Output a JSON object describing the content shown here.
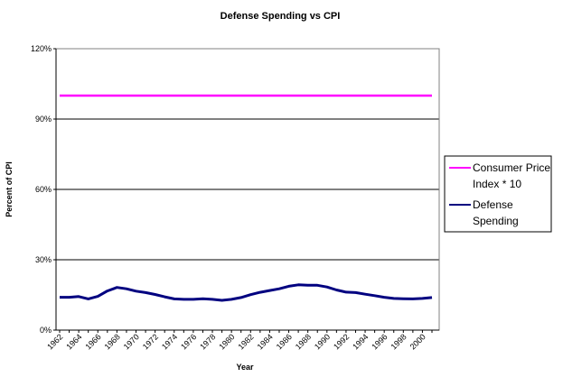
{
  "chart_data": {
    "type": "line",
    "title": "Defense Spending vs CPI",
    "xlabel": "Year",
    "ylabel": "Percent of CPI",
    "ylim": [
      0,
      120
    ],
    "yticks": [
      "0%",
      "30%",
      "60%",
      "90%",
      "120%"
    ],
    "ytick_values": [
      0,
      30,
      60,
      90,
      120
    ],
    "grid": true,
    "legend_position": "right",
    "x": [
      1962,
      1963,
      1964,
      1965,
      1966,
      1967,
      1968,
      1969,
      1970,
      1971,
      1972,
      1973,
      1974,
      1975,
      1976,
      1977,
      1978,
      1979,
      1980,
      1981,
      1982,
      1983,
      1984,
      1985,
      1986,
      1987,
      1988,
      1989,
      1990,
      1991,
      1992,
      1993,
      1994,
      1995,
      1996,
      1997,
      1998,
      1999,
      2000,
      2001
    ],
    "xtick_labels": [
      "1962",
      "1964",
      "1966",
      "1968",
      "1970",
      "1972",
      "1974",
      "1976",
      "1978",
      "1980",
      "1982",
      "1984",
      "1986",
      "1988",
      "1990",
      "1992",
      "1994",
      "1996",
      "1998",
      "2000"
    ],
    "series": [
      {
        "name": "Consumer Price Index * 10",
        "color": "#ff00ff",
        "values": [
          100,
          100,
          100,
          100,
          100,
          100,
          100,
          100,
          100,
          100,
          100,
          100,
          100,
          100,
          100,
          100,
          100,
          100,
          100,
          100,
          100,
          100,
          100,
          100,
          100,
          100,
          100,
          100,
          100,
          100,
          100,
          100,
          100,
          100,
          100,
          100,
          100,
          100,
          100,
          100
        ]
      },
      {
        "name": "Defense Spending",
        "color": "#000080",
        "values": [
          14.0,
          14.0,
          14.3,
          13.3,
          14.4,
          16.7,
          18.2,
          17.6,
          16.6,
          16.0,
          15.2,
          14.2,
          13.3,
          13.1,
          13.1,
          13.4,
          13.1,
          12.7,
          13.1,
          13.9,
          15.1,
          16.1,
          16.9,
          17.6,
          18.7,
          19.3,
          19.1,
          19.1,
          18.4,
          17.1,
          16.2,
          16.0,
          15.3,
          14.7,
          14.0,
          13.5,
          13.4,
          13.3,
          13.5,
          13.9
        ]
      }
    ],
    "legend": [
      "Consumer Price",
      "Index * 10",
      "Defense",
      "Spending"
    ]
  }
}
